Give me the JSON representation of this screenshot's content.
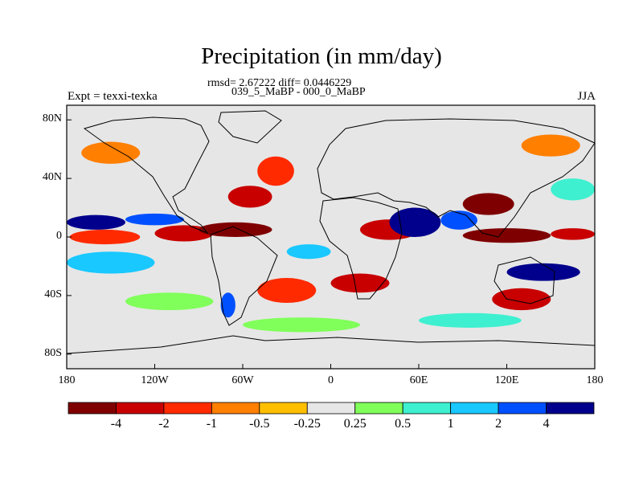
{
  "title": "Precipitation (in mm/day)",
  "stats": "rmsd= 2.67222 diff= 0.0446229",
  "period": "039_5_MaBP - 000_0_MaBP",
  "experiment": "Expt = texxi-texka",
  "season": "JJA",
  "lat_labels": [
    {
      "text": "80N",
      "lat": 80
    },
    {
      "text": "40N",
      "lat": 40
    },
    {
      "text": "0",
      "lat": 0
    },
    {
      "text": "40S",
      "lat": -40
    },
    {
      "text": "80S",
      "lat": -80
    }
  ],
  "lon_labels": [
    {
      "text": "180",
      "lon": -180
    },
    {
      "text": "120W",
      "lon": -120
    },
    {
      "text": "60W",
      "lon": -60
    },
    {
      "text": "0",
      "lon": 0
    },
    {
      "text": "60E",
      "lon": 60
    },
    {
      "text": "120E",
      "lon": 120
    },
    {
      "text": "180",
      "lon": 180
    }
  ],
  "colorbar": {
    "colors": [
      "#7f0000",
      "#c80000",
      "#ff2a00",
      "#ff7f00",
      "#ffbf00",
      "#e6e6e6",
      "#80ff5a",
      "#3ef0d0",
      "#18c8ff",
      "#0050ff",
      "#00008c"
    ],
    "labels": [
      "-4",
      "-2",
      "-1",
      "-0.5",
      "-0.25",
      "0.25",
      "0.5",
      "1",
      "2",
      "4"
    ]
  },
  "map_regions": [
    {
      "color": "#ff2a00",
      "lon": [
        -178,
        -130
      ],
      "lat": [
        -5,
        5
      ]
    },
    {
      "color": "#c80000",
      "lon": [
        -120,
        -80
      ],
      "lat": [
        -3,
        8
      ]
    },
    {
      "color": "#7f0000",
      "lon": [
        -90,
        -40
      ],
      "lat": [
        0,
        10
      ]
    },
    {
      "color": "#c80000",
      "lon": [
        20,
        60
      ],
      "lat": [
        -2,
        12
      ]
    },
    {
      "color": "#7f0000",
      "lon": [
        90,
        150
      ],
      "lat": [
        -4,
        6
      ]
    },
    {
      "color": "#c80000",
      "lon": [
        150,
        180
      ],
      "lat": [
        -2,
        6
      ]
    },
    {
      "color": "#00008c",
      "lon": [
        -180,
        -140
      ],
      "lat": [
        5,
        15
      ]
    },
    {
      "color": "#0050ff",
      "lon": [
        -140,
        -100
      ],
      "lat": [
        8,
        16
      ]
    },
    {
      "color": "#00008c",
      "lon": [
        40,
        75
      ],
      "lat": [
        0,
        20
      ]
    },
    {
      "color": "#0050ff",
      "lon": [
        75,
        100
      ],
      "lat": [
        5,
        18
      ]
    },
    {
      "color": "#7f0000",
      "lon": [
        90,
        125
      ],
      "lat": [
        15,
        30
      ]
    },
    {
      "color": "#c80000",
      "lon": [
        -70,
        -40
      ],
      "lat": [
        20,
        35
      ]
    },
    {
      "color": "#ff2a00",
      "lon": [
        -50,
        -25
      ],
      "lat": [
        35,
        55
      ]
    },
    {
      "color": "#ff7f00",
      "lon": [
        -170,
        -130
      ],
      "lat": [
        50,
        65
      ]
    },
    {
      "color": "#c80000",
      "lon": [
        0,
        40
      ],
      "lat": [
        -38,
        -25
      ]
    },
    {
      "color": "#ff2a00",
      "lon": [
        -50,
        -10
      ],
      "lat": [
        -45,
        -28
      ]
    },
    {
      "color": "#c80000",
      "lon": [
        110,
        150
      ],
      "lat": [
        -50,
        -35
      ]
    },
    {
      "color": "#00008c",
      "lon": [
        120,
        170
      ],
      "lat": [
        -30,
        -18
      ]
    },
    {
      "color": "#0050ff",
      "lon": [
        -75,
        -65
      ],
      "lat": [
        -55,
        -38
      ]
    },
    {
      "color": "#80ff5a",
      "lon": [
        -140,
        -80
      ],
      "lat": [
        -50,
        -38
      ]
    },
    {
      "color": "#80ff5a",
      "lon": [
        -60,
        20
      ],
      "lat": [
        -65,
        -55
      ]
    },
    {
      "color": "#3ef0d0",
      "lon": [
        60,
        130
      ],
      "lat": [
        -62,
        -52
      ]
    },
    {
      "color": "#18c8ff",
      "lon": [
        -180,
        -120
      ],
      "lat": [
        -25,
        -10
      ]
    },
    {
      "color": "#3ef0d0",
      "lon": [
        150,
        180
      ],
      "lat": [
        25,
        40
      ]
    },
    {
      "color": "#18c8ff",
      "lon": [
        -30,
        0
      ],
      "lat": [
        -15,
        -5
      ]
    },
    {
      "color": "#ff7f00",
      "lon": [
        130,
        170
      ],
      "lat": [
        55,
        70
      ]
    }
  ]
}
